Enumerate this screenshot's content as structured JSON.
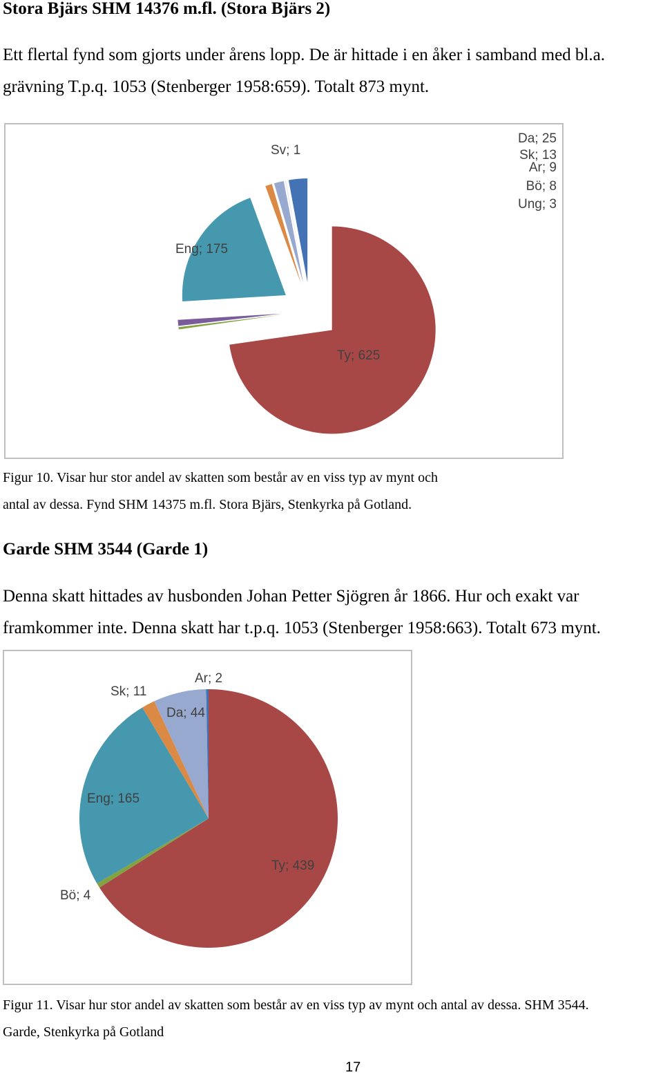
{
  "section1": {
    "heading": "Stora Bjärs SHM 14376 m.fl. (Stora Bjärs 2)",
    "para_line1": "Ett flertal fynd som gjorts under årens lopp. De är hittade i en åker i samband med bl.a.",
    "para_line2": "grävning T.p.q. 1053 (Stenberger 1958:659). Totalt 873 mynt.",
    "caption_line1": "Figur 10. Visar hur stor andel av skatten som består av en viss typ av mynt och",
    "caption_line2": "antal av dessa. Fynd SHM 14375 m.fl. Stora Bjärs, Stenkyrka på Gotland."
  },
  "section2": {
    "heading": "Garde SHM 3544 (Garde 1)",
    "para_line1": "Denna skatt hittades av husbonden Johan Petter Sjögren år 1866. Hur och exakt var",
    "para_line2": "framkommer inte. Denna skatt har t.p.q. 1053 (Stenberger 1958:663). Totalt 673 mynt.",
    "caption_line1": "Figur 11. Visar hur stor andel av skatten som består av en viss typ av mynt och antal av dessa. SHM 3544.",
    "caption_line2": "Garde, Stenkyrka på Gotland"
  },
  "page_number": "17",
  "chart_data": [
    {
      "type": "pie",
      "exploded": true,
      "slices": [
        {
          "name": "Ty",
          "value": 625,
          "label": "Ty; 625",
          "color": "#a84846"
        },
        {
          "name": "Ung",
          "value": 3,
          "label": "Ung; 3",
          "color": "#83a240"
        },
        {
          "name": "Bö",
          "value": 8,
          "label": "Bö; 8",
          "color": "#7a5c9b"
        },
        {
          "name": "Eng",
          "value": 175,
          "label": "Eng; 175",
          "color": "#4598ad"
        },
        {
          "name": "Ar",
          "value": 9,
          "label": "Ar; 9",
          "color": "#da8a45"
        },
        {
          "name": "Sk",
          "value": 13,
          "label": "Sk; 13",
          "color": "#98a9cf"
        },
        {
          "name": "Sv",
          "value": 1,
          "label": "Sv; 1",
          "color": "#dde5ef"
        },
        {
          "name": "Da",
          "value": 25,
          "label": "Da; 25",
          "color": "#4372b5"
        }
      ]
    },
    {
      "type": "pie",
      "exploded": false,
      "slices": [
        {
          "name": "Ty",
          "value": 439,
          "label": "Ty; 439",
          "color": "#a84846"
        },
        {
          "name": "Bö",
          "value": 4,
          "label": "Bö; 4",
          "color": "#83a240"
        },
        {
          "name": "Eng",
          "value": 165,
          "label": "Eng; 165",
          "color": "#4598ad"
        },
        {
          "name": "Sk",
          "value": 11,
          "label": "Sk; 11",
          "color": "#da8a45"
        },
        {
          "name": "Da",
          "value": 44,
          "label": "Da; 44",
          "color": "#98a9cf"
        },
        {
          "name": "Ar",
          "value": 2,
          "label": "Ar; 2",
          "color": "#4372b5"
        }
      ]
    }
  ]
}
